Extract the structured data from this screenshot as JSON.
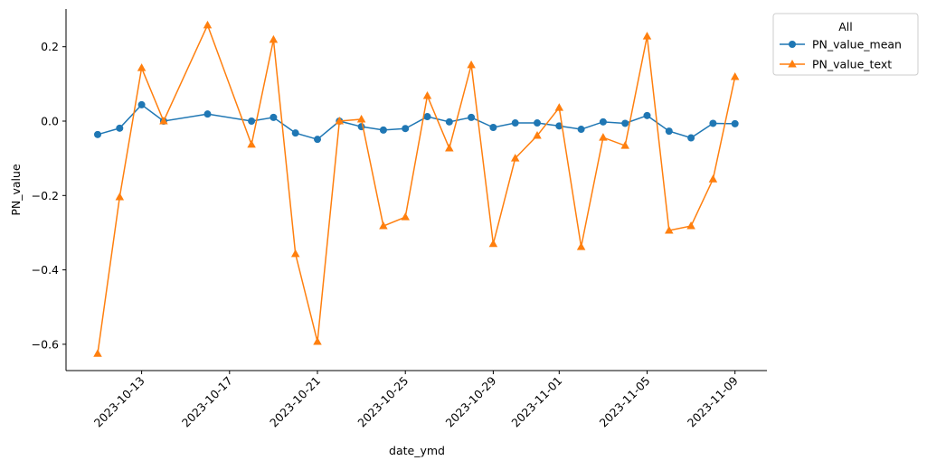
{
  "chart_data": {
    "type": "line",
    "title": "",
    "xlabel": "date_ymd",
    "ylabel": "PN_value",
    "ylim": [
      -0.67,
      0.3
    ],
    "yticks": [
      "−0.6",
      "−0.4",
      "−0.2",
      "0.0",
      "0.2"
    ],
    "ytick_values": [
      -0.6,
      -0.4,
      -0.2,
      0.0,
      0.2
    ],
    "xticks": [
      "2023-10-13",
      "2023-10-17",
      "2023-10-21",
      "2023-10-25",
      "2023-10-29",
      "2023-11-01",
      "2023-11-05",
      "2023-11-09"
    ],
    "legend": {
      "title": "All",
      "placement": "outside-top-right"
    },
    "x": [
      "2023-10-11",
      "2023-10-12",
      "2023-10-13",
      "2023-10-14",
      "2023-10-16",
      "2023-10-18",
      "2023-10-19",
      "2023-10-20",
      "2023-10-21",
      "2023-10-22",
      "2023-10-23",
      "2023-10-24",
      "2023-10-25",
      "2023-10-26",
      "2023-10-27",
      "2023-10-28",
      "2023-10-29",
      "2023-10-30",
      "2023-10-31",
      "2023-11-01",
      "2023-11-02",
      "2023-11-03",
      "2023-11-04",
      "2023-11-05",
      "2023-11-06",
      "2023-11-07",
      "2023-11-08",
      "2023-11-09"
    ],
    "series": [
      {
        "name": "PN_value_mean",
        "color": "#1f77b4",
        "marker": "circle",
        "values": [
          -0.036,
          -0.019,
          0.044,
          0.0,
          0.019,
          0.0,
          0.01,
          -0.032,
          -0.049,
          0.0,
          -0.015,
          -0.024,
          -0.02,
          0.012,
          -0.002,
          0.01,
          -0.017,
          -0.005,
          -0.005,
          -0.013,
          -0.022,
          -0.002,
          -0.006,
          0.015,
          -0.027,
          -0.045,
          -0.006,
          -0.007
        ]
      },
      {
        "name": "PN_value_text",
        "color": "#ff7f0e",
        "marker": "triangle",
        "values": [
          -0.625,
          -0.204,
          0.143,
          0.0,
          0.258,
          -0.063,
          0.219,
          -0.357,
          -0.593,
          0.0,
          0.005,
          -0.282,
          -0.258,
          0.068,
          -0.073,
          0.151,
          -0.33,
          -0.1,
          -0.039,
          0.036,
          -0.338,
          -0.044,
          -0.066,
          0.228,
          -0.294,
          -0.282,
          -0.156,
          0.119
        ]
      }
    ]
  }
}
